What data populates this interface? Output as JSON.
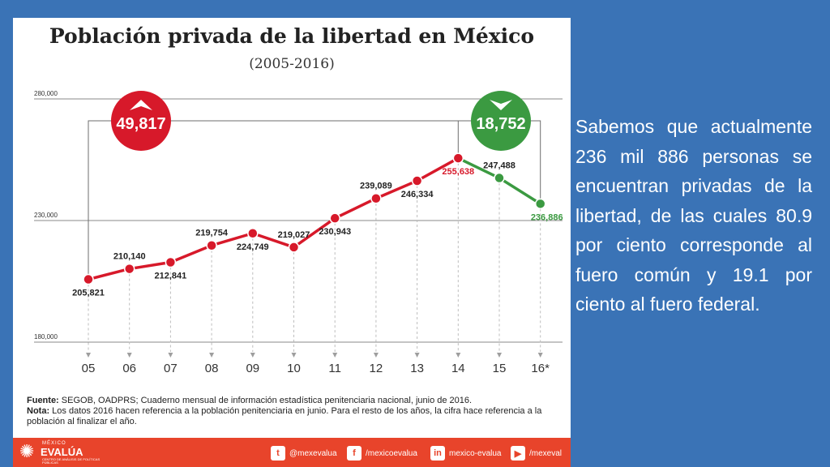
{
  "slide": {
    "side_text": "Sabemos que actualmente 236 mil 886 personas se encuentran privadas de la libertad, de las cuales 80.9 por ciento corresponde al fuero común y 19.1 por ciento al fuero federal."
  },
  "chart_data": {
    "type": "line",
    "title": "Población privada de la libertad en México",
    "subtitle": "(2005-2016)",
    "categories": [
      "05",
      "06",
      "07",
      "08",
      "09",
      "10",
      "11",
      "12",
      "13",
      "14",
      "15",
      "16*"
    ],
    "values": [
      205821,
      210140,
      212841,
      219754,
      224749,
      219027,
      230943,
      239089,
      246334,
      255638,
      247488,
      236886
    ],
    "value_labels": [
      "205,821",
      "210,140",
      "212,841",
      "219,754",
      "224,749",
      "219,027",
      "230,943",
      "239,089",
      "246,334",
      "255,638",
      "247,488",
      "236,886"
    ],
    "ylim": [
      180000,
      280000
    ],
    "yticks": [
      180000,
      230000,
      280000
    ],
    "ytick_labels": [
      "180,000",
      "230,000",
      "280,000"
    ],
    "colors": {
      "increase": "#d7192a",
      "decrease": "#3b9a41",
      "peak_label": "#d7192a",
      "last_label": "#3b9a41"
    },
    "annotations": [
      {
        "text": "49,817",
        "direction": "up",
        "color": "#d7192a",
        "icon": "arrow-up-icon"
      },
      {
        "text": "18,752",
        "direction": "down",
        "color": "#3b9a41",
        "icon": "arrow-down-icon"
      }
    ]
  },
  "notes": {
    "source_label": "Fuente:",
    "source_text": " SEGOB, OADPRS; Cuaderno mensual de información estadística penitenciaria nacional, junio de 2016.",
    "note_label": "Nota:",
    "note_text": " Los datos 2016 hacen referencia a la población penitenciaria en junio. Para el resto de los años, la cifra hace referencia a la población al finalizar el año."
  },
  "footer": {
    "logo_top": "MÉXICO",
    "logo_name": "EVALÚA",
    "logo_tagline": "CENTRO DE ANÁLISIS DE POLÍTICAS PÚBLICAS",
    "twitter": "@mexevalua",
    "facebook": "/mexicoevalua",
    "linkedin": "mexico-evalua",
    "youtube": "/mexeval"
  }
}
